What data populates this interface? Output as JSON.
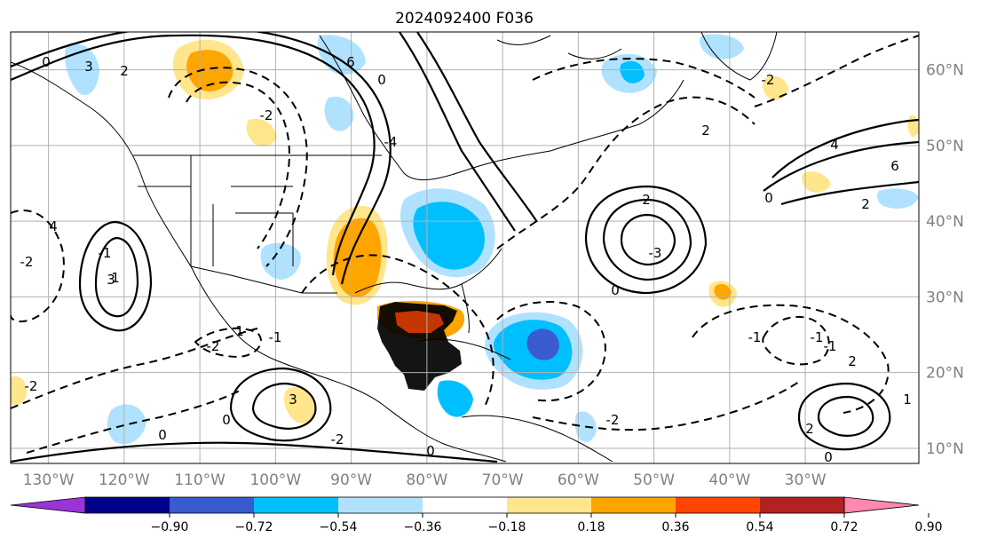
{
  "title": "2024092400 F036",
  "map": {
    "lon_labels": [
      "130°W",
      "120°W",
      "110°W",
      "100°W",
      "90°W",
      "80°W",
      "70°W",
      "60°W",
      "50°W",
      "40°W",
      "30°W"
    ],
    "lat_labels": [
      "60°N",
      "50°N",
      "40°N",
      "30°N",
      "20°N",
      "10°N"
    ],
    "lon_range": [
      -135,
      -15
    ],
    "lat_range": [
      8,
      65
    ],
    "grid": true,
    "contour_labels": [
      "0",
      "3",
      "2",
      "6",
      "-2",
      "-4",
      "2",
      "0",
      "-3",
      "6",
      "4",
      "2",
      "-1",
      "0",
      "-2",
      "3",
      "0",
      "-2",
      "1",
      "4",
      "-2",
      "-1",
      "2",
      "0",
      "-1",
      "-1",
      "2",
      "1",
      "0",
      "-2",
      "1",
      "3",
      "-2",
      "2",
      "0",
      "-1",
      "0",
      "-2"
    ]
  },
  "colorbar": {
    "ticks": [
      "−0.90",
      "−0.72",
      "−0.54",
      "−0.36",
      "−0.18",
      "0.18",
      "0.36",
      "0.54",
      "0.72",
      "0.90"
    ],
    "colors": [
      "#9a34d8",
      "#00008b",
      "#3a5bd0",
      "#00bfff",
      "#b0e2ff",
      "#ffffff",
      "#ffe68c",
      "#ffa500",
      "#ff4500",
      "#b22222",
      "#ff88b0"
    ],
    "extend": "both"
  }
}
